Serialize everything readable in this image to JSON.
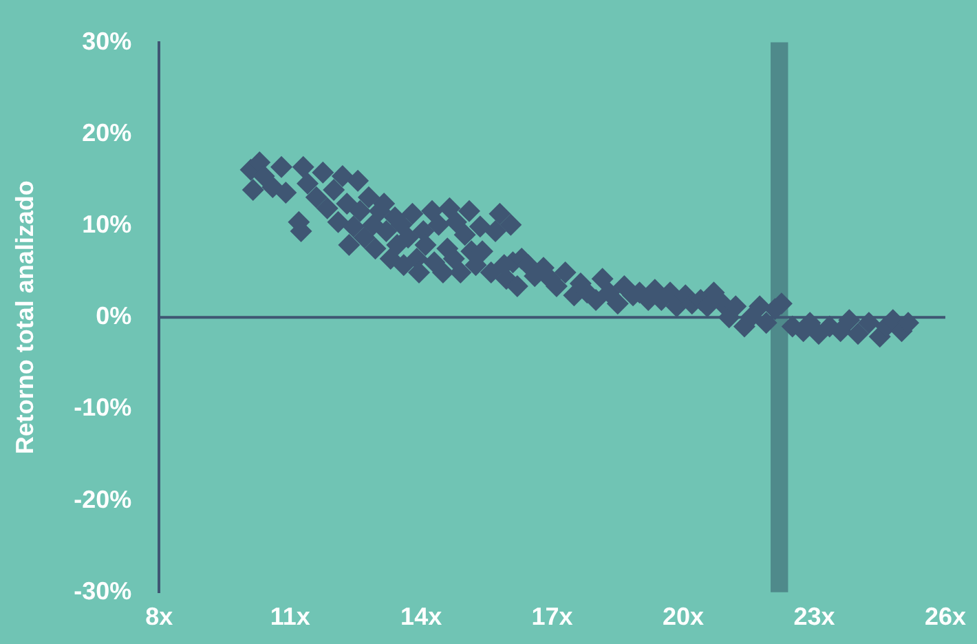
{
  "chart_data": {
    "type": "scatter",
    "ylabel": "Retorno total analizado",
    "marker": "diamond",
    "grid": false,
    "legend": false,
    "xlim": [
      8,
      26
    ],
    "xticks": [
      {
        "value": 8,
        "label": "8x"
      },
      {
        "value": 11,
        "label": "11x"
      },
      {
        "value": 14,
        "label": "14x"
      },
      {
        "value": 17,
        "label": "17x"
      },
      {
        "value": 20,
        "label": "20x"
      },
      {
        "value": 23,
        "label": "23x"
      },
      {
        "value": 26,
        "label": "26x"
      }
    ],
    "ylim": [
      -30,
      30
    ],
    "yticks": [
      {
        "value": -30,
        "label": "-30%"
      },
      {
        "value": -20,
        "label": "-20%"
      },
      {
        "value": -10,
        "label": "-10%"
      },
      {
        "value": 0,
        "label": "0%"
      },
      {
        "value": 10,
        "label": "10%"
      },
      {
        "value": 20,
        "label": "20%"
      },
      {
        "value": 30,
        "label": "30%"
      }
    ],
    "bands": [
      {
        "axis": "x",
        "from": 22,
        "to": 22.4,
        "color": "#4f8a8b"
      }
    ],
    "ref_lines": [
      {
        "axis": "y",
        "value": 0,
        "color": "#3f5673"
      }
    ],
    "series": [
      {
        "color": "#3f5673",
        "x": [
          10.1,
          10.15,
          10.3,
          10.4,
          10.6,
          10.8,
          10.9,
          11.2,
          11.25,
          11.3,
          11.4,
          11.6,
          11.75,
          11.85,
          12.0,
          12.1,
          12.2,
          12.3,
          12.35,
          12.45,
          12.55,
          12.6,
          12.7,
          12.8,
          12.9,
          12.95,
          13.05,
          13.15,
          13.2,
          13.3,
          13.4,
          13.45,
          13.55,
          13.6,
          13.7,
          13.8,
          13.9,
          13.95,
          14.05,
          14.1,
          14.25,
          14.3,
          14.4,
          14.5,
          14.6,
          14.65,
          14.75,
          14.8,
          14.9,
          15.0,
          15.1,
          15.15,
          15.25,
          15.35,
          15.4,
          15.6,
          15.7,
          15.8,
          15.9,
          15.95,
          16.05,
          16.1,
          16.2,
          16.3,
          16.45,
          16.6,
          16.8,
          16.95,
          17.1,
          17.3,
          17.5,
          17.65,
          17.8,
          18.0,
          18.15,
          18.3,
          18.5,
          18.65,
          18.85,
          19.0,
          19.2,
          19.35,
          19.5,
          19.7,
          19.85,
          20.05,
          20.2,
          20.4,
          20.55,
          20.7,
          20.9,
          21.05,
          21.2,
          21.4,
          21.55,
          21.75,
          21.9,
          22.1,
          22.25,
          22.5,
          22.75,
          22.9,
          23.1,
          23.35,
          23.6,
          23.8,
          24.0,
          24.25,
          24.5,
          24.65,
          24.8,
          25.0,
          25.15
        ],
        "values": [
          16.1,
          13.9,
          16.9,
          15.4,
          14.2,
          16.4,
          13.6,
          10.4,
          9.4,
          16.4,
          14.6,
          13.1,
          15.8,
          11.9,
          13.9,
          10.4,
          15.4,
          12.4,
          7.9,
          9.9,
          14.9,
          11.6,
          8.7,
          13.1,
          10.1,
          7.5,
          11.6,
          12.4,
          9.4,
          6.4,
          10.9,
          7.9,
          10.1,
          5.7,
          8.7,
          11.3,
          6.4,
          4.9,
          9.4,
          7.9,
          11.6,
          6.0,
          10.1,
          4.9,
          7.5,
          11.9,
          6.4,
          10.4,
          4.9,
          9.0,
          11.6,
          7.2,
          5.7,
          9.9,
          7.2,
          4.9,
          9.4,
          11.3,
          5.7,
          4.2,
          10.1,
          6.0,
          3.4,
          6.4,
          5.7,
          4.5,
          5.4,
          4.2,
          3.4,
          4.9,
          2.4,
          3.7,
          2.7,
          1.9,
          4.2,
          2.7,
          1.5,
          3.4,
          2.4,
          2.7,
          1.9,
          3.0,
          1.9,
          2.7,
          1.2,
          2.4,
          1.5,
          1.9,
          1.2,
          2.7,
          1.5,
          0,
          1.2,
          -1.0,
          0,
          1.2,
          -0.6,
          0.9,
          1.5,
          -1.0,
          -1.5,
          -0.6,
          -1.8,
          -1.0,
          -1.5,
          -0.3,
          -1.8,
          -0.6,
          -2.1,
          -1.0,
          -0.3,
          -1.5,
          -0.6
        ]
      }
    ]
  }
}
